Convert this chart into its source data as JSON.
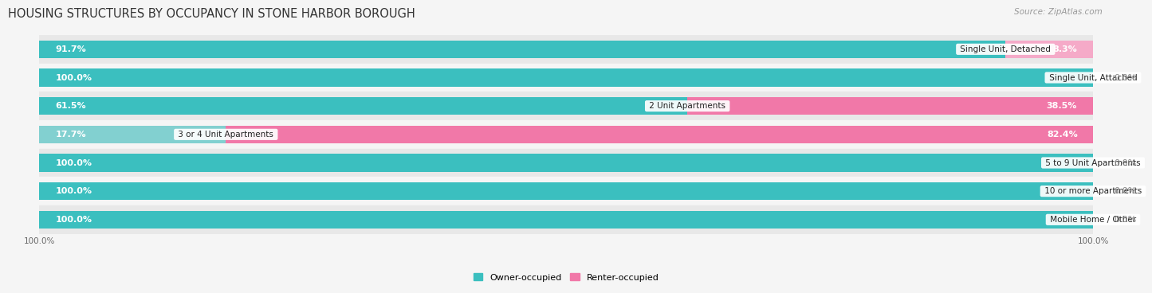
{
  "title": "HOUSING STRUCTURES BY OCCUPANCY IN STONE HARBOR BOROUGH",
  "source": "Source: ZipAtlas.com",
  "categories": [
    "Single Unit, Detached",
    "Single Unit, Attached",
    "2 Unit Apartments",
    "3 or 4 Unit Apartments",
    "5 to 9 Unit Apartments",
    "10 or more Apartments",
    "Mobile Home / Other"
  ],
  "owner_pct": [
    91.7,
    100.0,
    61.5,
    17.7,
    100.0,
    100.0,
    100.0
  ],
  "renter_pct": [
    8.3,
    0.0,
    38.5,
    82.4,
    0.0,
    0.0,
    0.0
  ],
  "owner_color": "#3bbfbf",
  "owner_color_light": "#82d0d0",
  "renter_color": "#f178a8",
  "renter_color_small": "#f5aac8",
  "row_bg_colors": [
    "#e8e8e8",
    "#f5f5f5",
    "#e8e8e8",
    "#f5f5f5",
    "#e8e8e8",
    "#f5f5f5",
    "#e8e8e8"
  ],
  "title_fontsize": 10.5,
  "bar_label_fontsize": 8.0,
  "cat_label_fontsize": 7.5,
  "tick_fontsize": 7.5,
  "source_fontsize": 7.5,
  "legend_fontsize": 8.0,
  "bar_height": 0.62,
  "background_color": "#f5f5f5"
}
